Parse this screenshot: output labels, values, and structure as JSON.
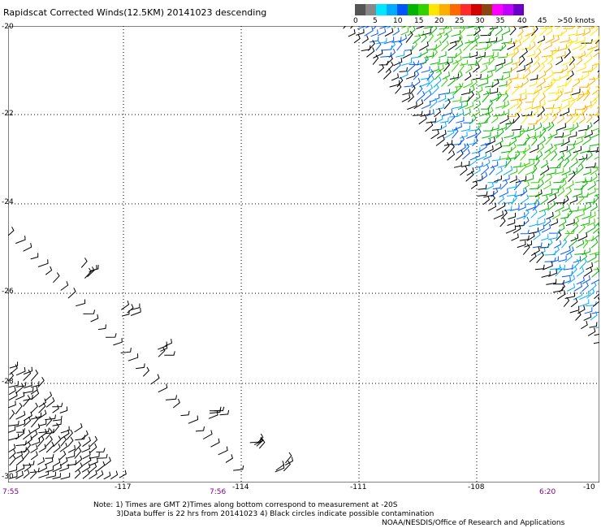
{
  "header": {
    "title": "Rapidscat Corrected Winds(12.5KM) 20141023 descending"
  },
  "legend": {
    "colors": [
      "#555555",
      "#888888",
      "#00e6ff",
      "#00aaff",
      "#0055ff",
      "#00b400",
      "#34d100",
      "#ffe600",
      "#ffae00",
      "#ff6a00",
      "#ff2a2a",
      "#d20000",
      "#8b4513",
      "#ff00ff",
      "#c000ff",
      "#6a00c8"
    ],
    "tick_labels": [
      "0",
      "5",
      "10",
      "15",
      "20",
      "25",
      "30",
      "35",
      "40",
      "45",
      ">50 knots"
    ]
  },
  "axes": {
    "lat_labels": [
      "-20",
      "-22",
      "-24",
      "-26",
      "-28",
      "-30"
    ],
    "lon_labels": [
      "-117",
      "-114",
      "-111",
      "-108",
      "-10"
    ],
    "time_labels": [
      "7:55",
      "7:56",
      "6:20"
    ]
  },
  "notes": {
    "line1": "Note: 1) Times are GMT 2)Times along bottom correspond to measurement at -20S",
    "line2": "3)Data buffer is 22 hrs from 20141023 4) Black circles indicate possible contamination",
    "credit": "NOAA/NESDIS/Office of Research and Applications"
  }
}
